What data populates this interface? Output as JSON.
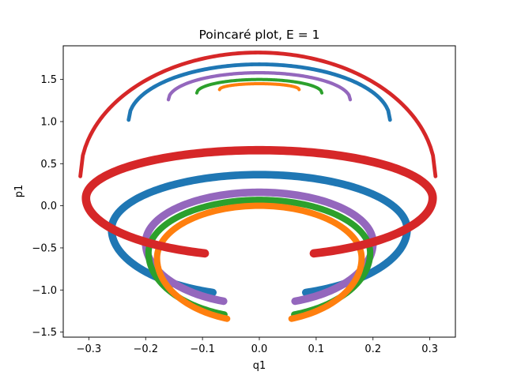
{
  "chart_data": {
    "type": "scatter",
    "title": "Poincaré plot, E = 1",
    "xlabel": "q1",
    "ylabel": "p1",
    "xlim": [
      -0.345,
      0.345
    ],
    "ylim": [
      -1.56,
      1.9
    ],
    "x_ticks": [
      -0.3,
      -0.2,
      -0.1,
      0.0,
      0.1,
      0.2,
      0.3
    ],
    "x_tick_labels": [
      "−0.3",
      "−0.2",
      "−0.1",
      "0.0",
      "0.1",
      "0.2",
      "0.3"
    ],
    "y_ticks": [
      -1.5,
      -1.0,
      -0.5,
      0.0,
      0.5,
      1.0,
      1.5
    ],
    "y_tick_labels": [
      "−1.5",
      "−1.0",
      "−0.5",
      "0.0",
      "0.5",
      "1.0",
      "1.5"
    ],
    "grid": false,
    "legend": "none",
    "series": [
      {
        "color": "#1f77b4",
        "upper": {
          "x_min": -0.23,
          "x_max": 0.23,
          "y_top": 1.68,
          "y_end": 1.02,
          "thickness": 0.045
        },
        "lower": {
          "x_min": -0.26,
          "x_max": 0.26,
          "y_top": 0.37,
          "y_bottom": -1.07,
          "thickness": 0.09
        }
      },
      {
        "color": "#9467bd",
        "upper": {
          "x_min": -0.16,
          "x_max": 0.16,
          "y_top": 1.58,
          "y_end": 1.26,
          "thickness": 0.04
        },
        "lower": {
          "x_min": -0.2,
          "x_max": 0.2,
          "y_top": 0.16,
          "y_bottom": -1.17,
          "thickness": 0.09
        }
      },
      {
        "color": "#2ca02c",
        "upper": {
          "x_min": -0.11,
          "x_max": 0.11,
          "y_top": 1.5,
          "y_end": 1.34,
          "thickness": 0.035
        },
        "lower": {
          "x_min": -0.195,
          "x_max": 0.195,
          "y_top": 0.07,
          "y_bottom": -1.33,
          "thickness": 0.075
        }
      },
      {
        "color": "#ff7f0e",
        "upper": {
          "x_min": -0.07,
          "x_max": 0.07,
          "y_top": 1.45,
          "y_end": 1.38,
          "thickness": 0.035
        },
        "lower": {
          "x_min": -0.18,
          "x_max": 0.18,
          "y_top": 0.0,
          "y_bottom": -1.38,
          "thickness": 0.075
        }
      },
      {
        "color": "#d62728",
        "upper": {
          "x_min": -0.315,
          "x_max": 0.31,
          "y_top": 1.82,
          "y_end": 0.35,
          "thickness": 0.045
        },
        "lower": {
          "x_min": -0.305,
          "x_max": 0.305,
          "y_top": 0.66,
          "y_bottom": -0.6,
          "thickness": 0.1
        }
      }
    ]
  }
}
